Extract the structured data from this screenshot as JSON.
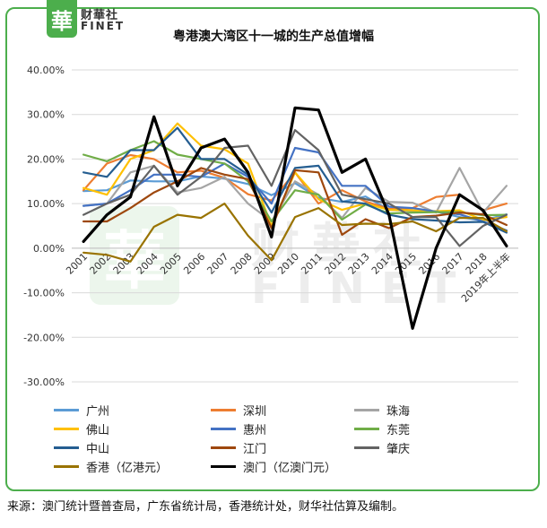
{
  "header": {
    "logo_char": "華",
    "logo_cn": "财華社",
    "logo_en": "FINET",
    "title": "粤港澳大湾区十一城的生产总值增幅"
  },
  "watermark": {
    "char": "華",
    "cn": "财華社",
    "en": "FINET"
  },
  "source": "来源：澳门统计暨普查局，广东省统计局，香港统计处，财华社估算及编制。",
  "chart_data": {
    "type": "line",
    "title": "粤港澳大湾区十一城的生产总值增幅",
    "xlabel": "",
    "ylabel": "",
    "ylim": [
      -30,
      40
    ],
    "yticks": [
      "40.00%",
      "30.00%",
      "20.00%",
      "10.00%",
      "0.00%",
      "-10.00%",
      "-20.00%",
      "-30.00%"
    ],
    "categories": [
      "2001",
      "2002",
      "2003",
      "2004",
      "2005",
      "2006",
      "2007",
      "2008",
      "2009",
      "2010",
      "2011",
      "2012",
      "2013",
      "2014",
      "2015",
      "2016",
      "2017",
      "2018",
      "2019年上半年"
    ],
    "grid": true,
    "legend_position": "bottom",
    "series": [
      {
        "name": "广州",
        "color": "#5b9bd5",
        "width": 2.2,
        "values": [
          12.8,
          13.0,
          15.2,
          15.0,
          15.0,
          16.1,
          15.6,
          14.4,
          11.9,
          14.6,
          11.3,
          10.4,
          11.6,
          8.6,
          8.4,
          8.2,
          7.0,
          6.2,
          7.6
        ]
      },
      {
        "name": "深圳",
        "color": "#ed7d31",
        "width": 2.2,
        "values": [
          13.0,
          19.0,
          20.9,
          20.0,
          17.0,
          17.4,
          15.8,
          12.1,
          10.7,
          17.0,
          10.0,
          13.0,
          10.5,
          8.8,
          9.0,
          11.5,
          12.0,
          8.5,
          10.0
        ]
      },
      {
        "name": "珠海",
        "color": "#a5a5a5",
        "width": 2.2,
        "values": [
          9.5,
          10.0,
          17.0,
          18.5,
          12.5,
          13.5,
          16.0,
          10.0,
          6.0,
          15.0,
          12.0,
          6.8,
          13.5,
          10.4,
          10.2,
          8.0,
          18.0,
          8.0,
          14.0
        ]
      },
      {
        "name": "佛山",
        "color": "#ffc000",
        "width": 2.2,
        "values": [
          13.5,
          12.0,
          20.0,
          22.0,
          28.0,
          23.0,
          22.2,
          19.0,
          5.0,
          17.0,
          11.0,
          8.6,
          10.0,
          8.6,
          8.5,
          8.3,
          8.5,
          6.3,
          7.0
        ]
      },
      {
        "name": "惠州",
        "color": "#4472c4",
        "width": 2.2,
        "values": [
          9.5,
          10.0,
          13.0,
          16.5,
          16.5,
          16.0,
          19.0,
          16.0,
          10.0,
          22.5,
          21.5,
          14.0,
          14.0,
          9.3,
          9.0,
          8.2,
          7.6,
          6.0,
          4.0
        ]
      },
      {
        "name": "东莞",
        "color": "#70ad47",
        "width": 2.2,
        "values": [
          21.0,
          19.5,
          22.0,
          24.0,
          21.0,
          20.0,
          19.0,
          15.0,
          6.0,
          13.0,
          12.0,
          6.4,
          9.8,
          7.8,
          8.0,
          8.1,
          8.1,
          7.4,
          7.5
        ]
      },
      {
        "name": "中山",
        "color": "#255e91",
        "width": 2.2,
        "values": [
          17.0,
          16.0,
          22.0,
          22.0,
          27.0,
          20.0,
          20.0,
          16.5,
          8.0,
          18.0,
          18.5,
          10.5,
          10.0,
          7.5,
          6.5,
          6.2,
          5.8,
          5.9,
          3.5
        ]
      },
      {
        "name": "江门",
        "color": "#9e480e",
        "width": 2.2,
        "values": [
          6.0,
          6.0,
          9.0,
          12.5,
          15.0,
          18.0,
          16.5,
          15.5,
          4.5,
          17.5,
          17.0,
          3.0,
          6.5,
          4.5,
          7.0,
          7.3,
          8.0,
          7.6,
          5.2
        ]
      },
      {
        "name": "肇庆",
        "color": "#636363",
        "width": 2.2,
        "values": [
          7.5,
          10.0,
          12.0,
          18.5,
          12.0,
          16.0,
          22.5,
          23.0,
          14.0,
          26.5,
          22.0,
          12.0,
          11.0,
          10.0,
          7.0,
          7.0,
          0.5,
          5.0,
          7.5
        ]
      },
      {
        "name": "香港（亿港元）",
        "color": "#997300",
        "width": 2.2,
        "values": [
          -1.0,
          -1.5,
          -3.0,
          4.8,
          7.5,
          6.8,
          10.0,
          2.8,
          -2.7,
          7.0,
          9.0,
          5.2,
          5.5,
          5.4,
          6.0,
          3.8,
          6.8,
          6.8,
          3.8
        ]
      },
      {
        "name": "澳门（亿澳门元）",
        "color": "#000000",
        "width": 3.2,
        "values": [
          1.5,
          7.5,
          11.5,
          29.5,
          14.0,
          22.5,
          24.5,
          17.0,
          2.5,
          31.5,
          31.0,
          17.0,
          20.0,
          7.5,
          -18.0,
          0.0,
          12.0,
          8.5,
          0.5
        ]
      }
    ]
  }
}
